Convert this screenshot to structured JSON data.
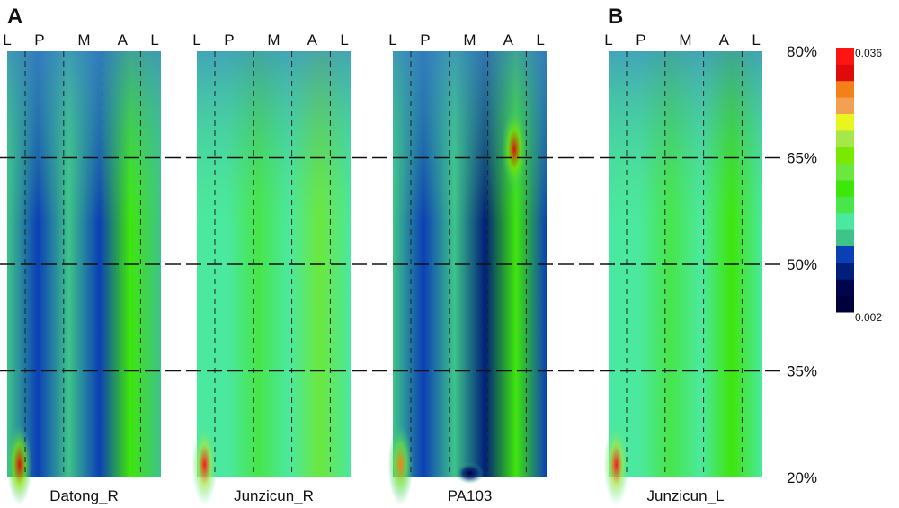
{
  "chart_data": {
    "type": "heatmap",
    "panel_letters": [
      "A",
      "B"
    ],
    "column_tick_labels": [
      "L",
      "P",
      "M",
      "A",
      "L"
    ],
    "panels": [
      {
        "name": "Datong_R",
        "group": "A",
        "columns": [
          0.012,
          0.01,
          0.011,
          0.01,
          0.017,
          0.011
        ],
        "hotspots": [
          {
            "col": 0.08,
            "row": 0.03,
            "value": 0.032
          }
        ]
      },
      {
        "name": "Junzicun_R",
        "group": "A",
        "columns": [
          0.013,
          0.014,
          0.015,
          0.013,
          0.019,
          0.014
        ],
        "hotspots": [
          {
            "col": 0.05,
            "row": 0.03,
            "value": 0.034
          }
        ]
      },
      {
        "name": "PA103",
        "group": "A",
        "columns": [
          0.011,
          0.01,
          0.011,
          0.008,
          0.017,
          0.009
        ],
        "hotspots": [
          {
            "col": 0.79,
            "row": 0.77,
            "value": 0.032
          },
          {
            "col": 0.5,
            "row": 0.01,
            "value": 0.004
          },
          {
            "col": 0.05,
            "row": 0.03,
            "value": 0.03
          }
        ]
      },
      {
        "name": "Junzicun_L",
        "group": "B",
        "columns": [
          0.014,
          0.014,
          0.015,
          0.014,
          0.018,
          0.014
        ],
        "hotspots": [
          {
            "col": 0.05,
            "row": 0.03,
            "value": 0.035
          }
        ]
      }
    ],
    "y_tick_labels": [
      "80%",
      "65%",
      "50%",
      "35%",
      "20%"
    ],
    "y_ticks": [
      80,
      65,
      50,
      35,
      20
    ],
    "ylim": [
      20,
      80
    ],
    "colorbar": {
      "min_label": "0.002",
      "max_label": "0.036",
      "min": 0.002,
      "max": 0.036,
      "bins": [
        "#00003a",
        "#00044a",
        "#001f7a",
        "#0b3fb6",
        "#3ec48a",
        "#4be89f",
        "#47e64a",
        "#3ee60c",
        "#6be83e",
        "#7ae800",
        "#a6e84a",
        "#e9f51e",
        "#f4a052",
        "#f4801a",
        "#e00a0a",
        "#ff1414"
      ]
    }
  }
}
